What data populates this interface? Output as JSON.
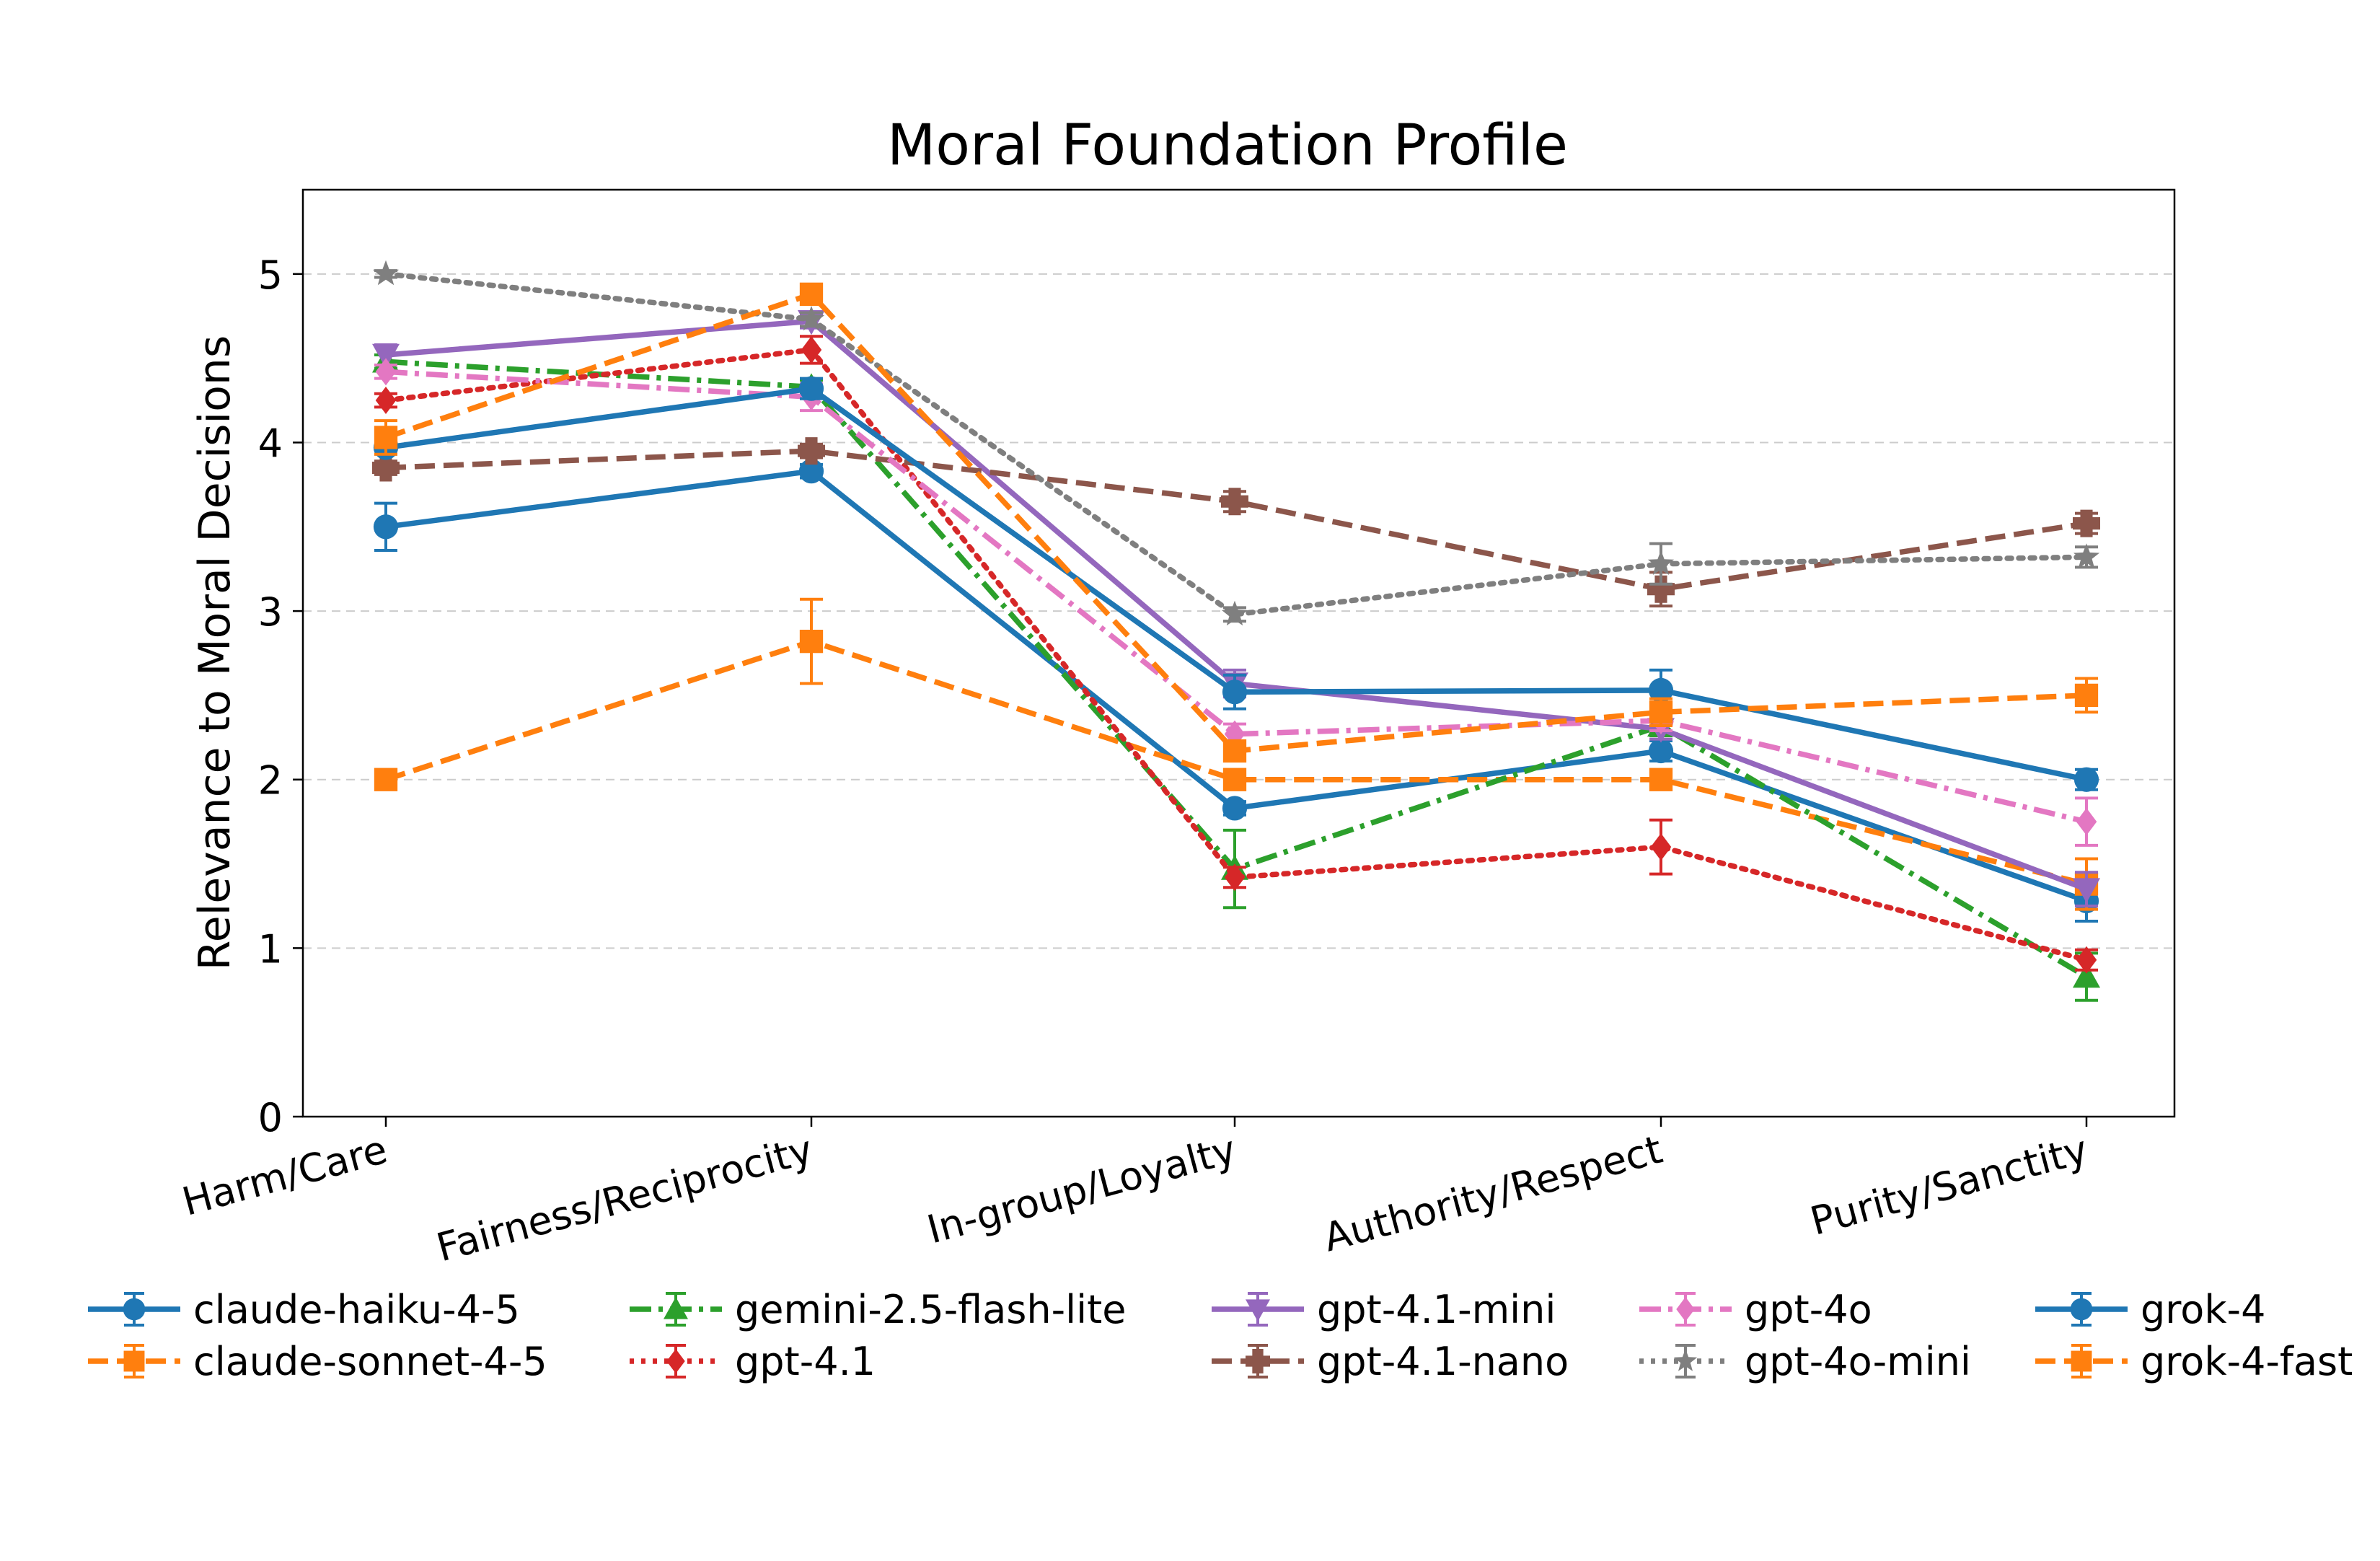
{
  "chart_data": {
    "type": "line",
    "title": "Moral Foundation Profile",
    "xlabel": "",
    "ylabel": "Relevance to Moral Decisions",
    "categories": [
      "Harm/Care",
      "Fairness/Reciprocity",
      "In-group/Loyalty",
      "Authority/Respect",
      "Purity/Sanctity"
    ],
    "ylim": [
      0,
      5.5
    ],
    "yticks": [
      0,
      1,
      2,
      3,
      4,
      5
    ],
    "grid": "horizontal dashed",
    "legend_position": "bottom",
    "series": [
      {
        "name": "claude-haiku-4-5",
        "color": "#1f77b4",
        "linestyle": "solid",
        "marker": "circle",
        "values": [
          3.5,
          3.83,
          1.83,
          2.17,
          1.28
        ],
        "errors": [
          0.14,
          0.04,
          0.04,
          0.06,
          0.12
        ]
      },
      {
        "name": "claude-sonnet-4-5",
        "color": "#ff7f0e",
        "linestyle": "dashed",
        "marker": "square",
        "values": [
          2.0,
          2.82,
          2.0,
          2.0,
          1.38
        ],
        "errors": [
          0.02,
          0.25,
          0.02,
          0.02,
          0.15
        ]
      },
      {
        "name": "gemini-2.5-flash-lite",
        "color": "#2ca02c",
        "linestyle": "dashdot",
        "marker": "triangle-up",
        "values": [
          4.48,
          4.33,
          1.47,
          2.32,
          0.83
        ],
        "errors": [
          0.04,
          0.04,
          0.23,
          0.06,
          0.14
        ]
      },
      {
        "name": "gpt-4.1",
        "color": "#d62728",
        "linestyle": "dotted",
        "marker": "diamond",
        "values": [
          4.25,
          4.55,
          1.42,
          1.6,
          0.93
        ],
        "errors": [
          0.04,
          0.08,
          0.06,
          0.16,
          0.06
        ]
      },
      {
        "name": "gpt-4.1-mini",
        "color": "#9467bd",
        "linestyle": "solid",
        "marker": "triangle-down",
        "values": [
          4.52,
          4.72,
          2.57,
          2.3,
          1.35
        ],
        "errors": [
          0.06,
          0.04,
          0.08,
          0.06,
          0.1
        ]
      },
      {
        "name": "gpt-4.1-nano",
        "color": "#8c564b",
        "linestyle": "dashed",
        "marker": "plus",
        "values": [
          3.85,
          3.95,
          3.65,
          3.13,
          3.52
        ],
        "errors": [
          0.04,
          0.04,
          0.06,
          0.1,
          0.06
        ]
      },
      {
        "name": "gpt-4o",
        "color": "#e377c2",
        "linestyle": "dashdot",
        "marker": "diamond",
        "values": [
          4.42,
          4.27,
          2.27,
          2.35,
          1.75
        ],
        "errors": [
          0.04,
          0.08,
          0.06,
          0.06,
          0.14
        ]
      },
      {
        "name": "gpt-4o-mini",
        "color": "#7f7f7f",
        "linestyle": "dotted",
        "marker": "star",
        "values": [
          5.0,
          4.73,
          2.98,
          3.28,
          3.32
        ],
        "errors": [
          0.02,
          0.04,
          0.04,
          0.12,
          0.06
        ]
      },
      {
        "name": "grok-4",
        "color": "#1f77b4",
        "linestyle": "solid",
        "marker": "circle",
        "values": [
          3.97,
          4.32,
          2.52,
          2.53,
          2.0
        ],
        "errors": [
          0.04,
          0.06,
          0.1,
          0.12,
          0.06
        ]
      },
      {
        "name": "grok-4-fast",
        "color": "#ff7f0e",
        "linestyle": "dashed",
        "marker": "square",
        "values": [
          4.03,
          4.88,
          2.17,
          2.4,
          2.5
        ],
        "errors": [
          0.1,
          0.04,
          0.04,
          0.08,
          0.1
        ]
      }
    ]
  }
}
